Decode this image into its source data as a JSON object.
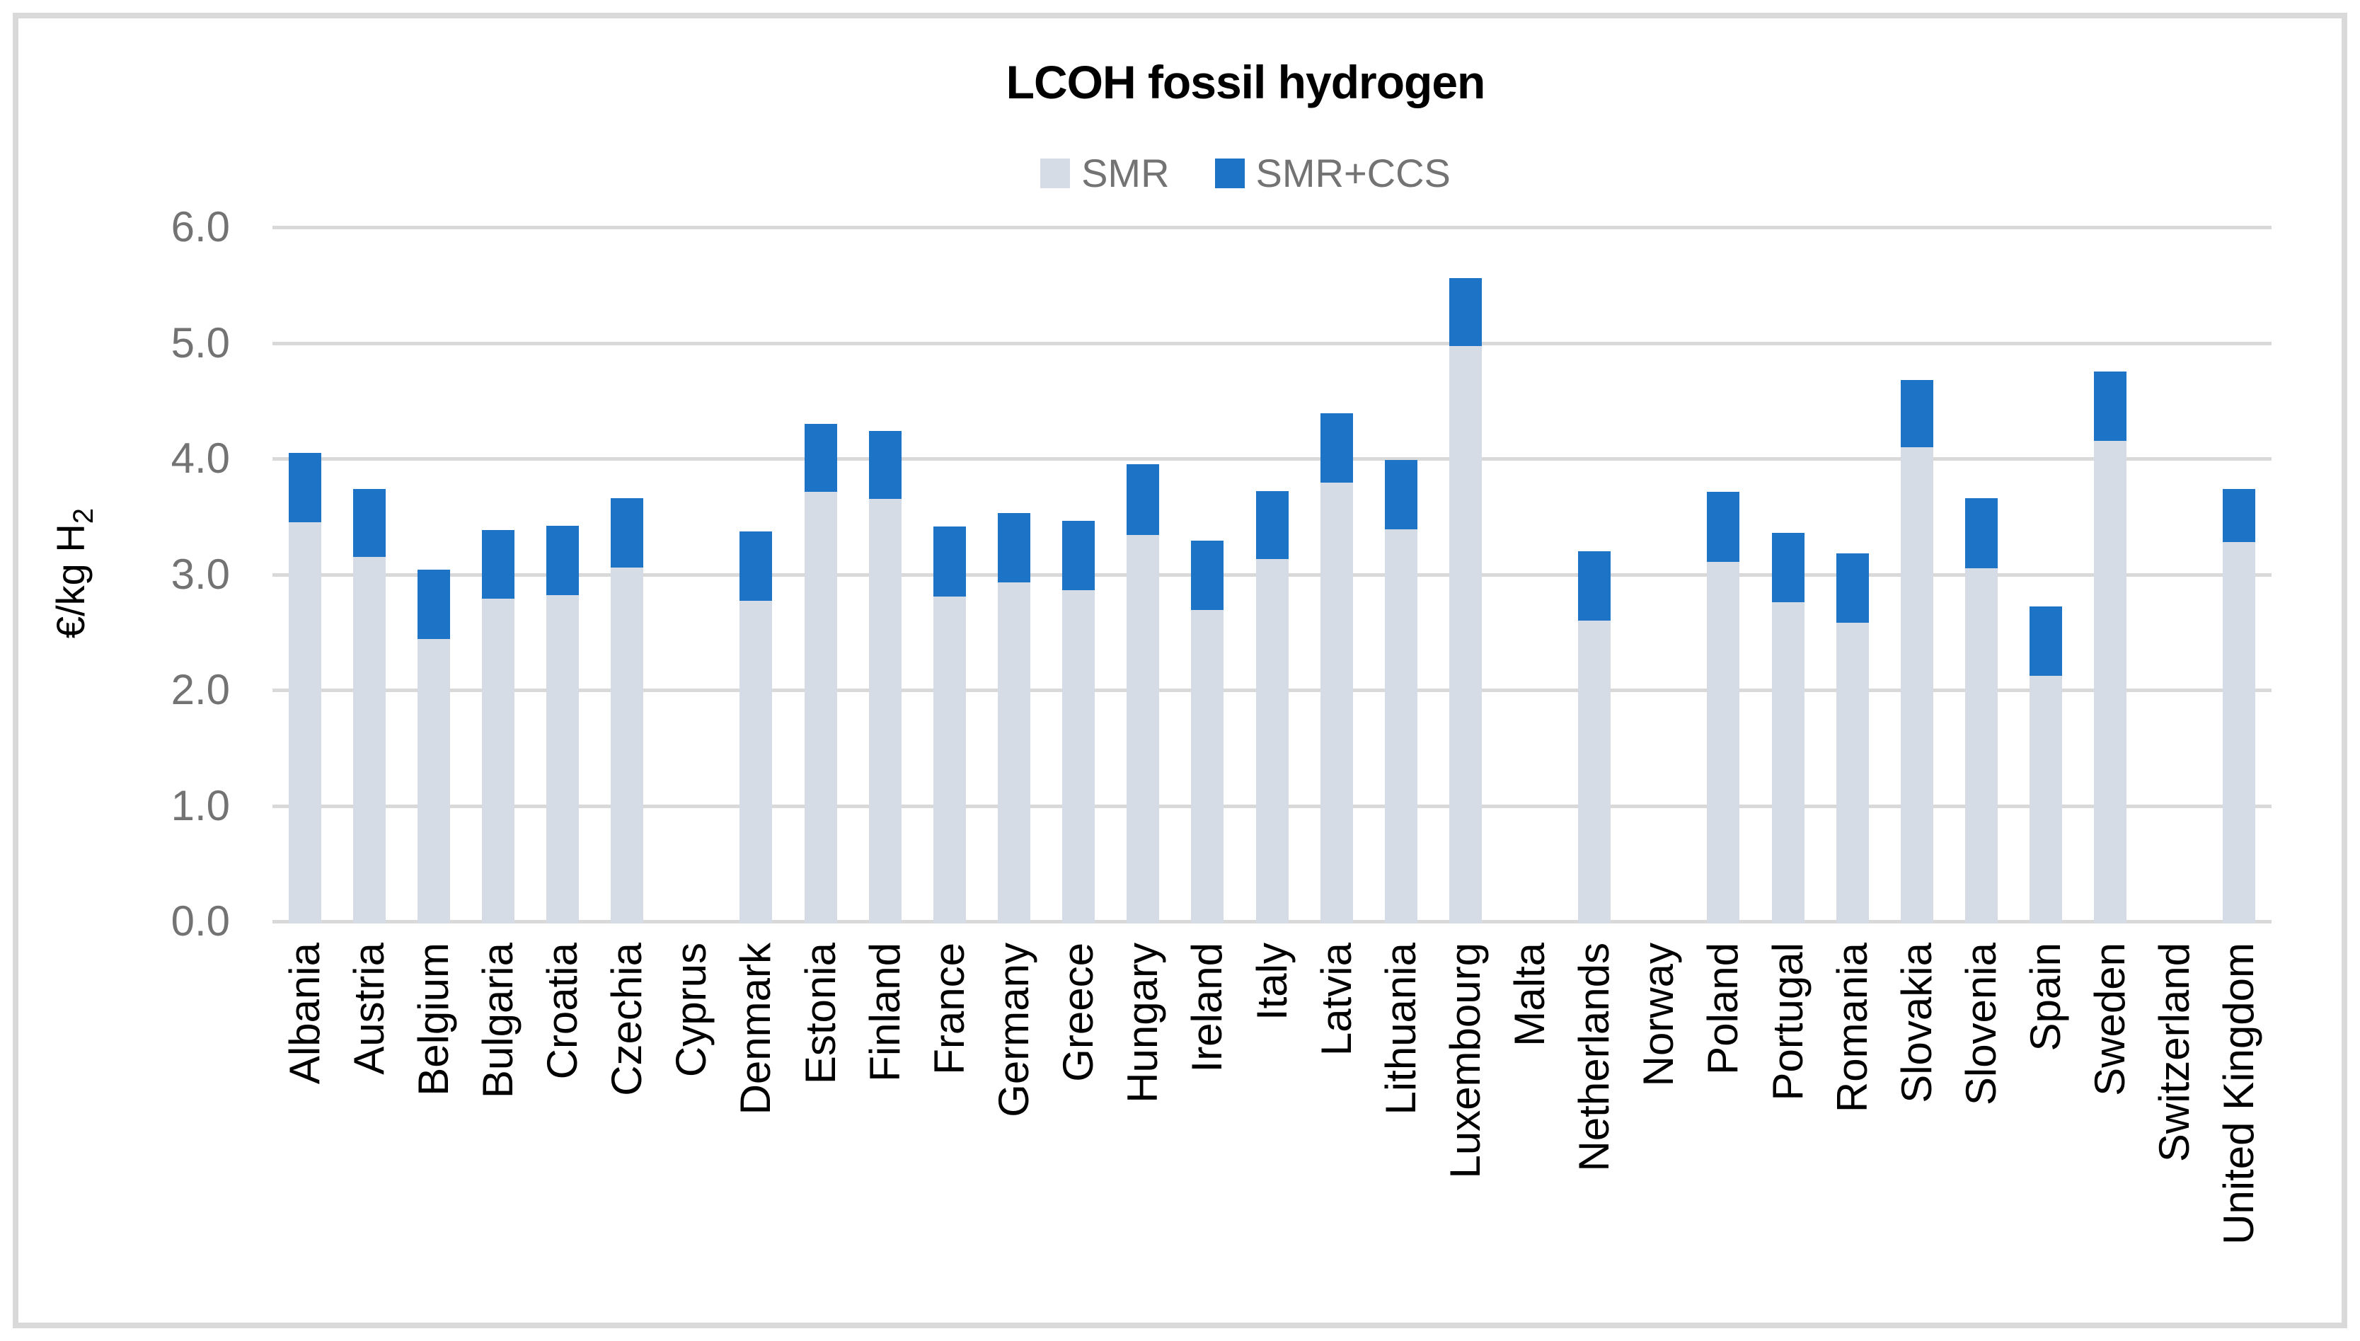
{
  "title": "LCOH fossil hydrogen",
  "legend": [
    {
      "label": "SMR",
      "color": "#d6dce5"
    },
    {
      "label": "SMR+CCS",
      "color": "#1d73c6"
    }
  ],
  "y_axis": {
    "title_main": "€/kg H",
    "title_sub": "2",
    "ticks": [
      {
        "label": "6.0",
        "value": 6
      },
      {
        "label": "5.0",
        "value": 5
      },
      {
        "label": "4.0",
        "value": 4
      },
      {
        "label": "3.0",
        "value": 3
      },
      {
        "label": "2.0",
        "value": 2
      },
      {
        "label": "1.0",
        "value": 1
      },
      {
        "label": "0.0",
        "value": 0
      }
    ]
  },
  "colors": {
    "smr": "#d6dce5",
    "smr_ccs": "#1d73c6",
    "gridline": "#d9d9d9",
    "axis_text": "#737373",
    "label_text": "#000000"
  },
  "chart_data": {
    "type": "bar",
    "stacked": true,
    "title": "LCOH fossil hydrogen",
    "xlabel": "",
    "ylabel": "€/kg H2",
    "ylim": [
      0,
      6
    ],
    "grid": true,
    "legend_position": "top",
    "categories": [
      "Albania",
      "Austria",
      "Belgium",
      "Bulgaria",
      "Croatia",
      "Czechia",
      "Cyprus",
      "Denmark",
      "Estonia",
      "Finland",
      "France",
      "Germany",
      "Greece",
      "Hungary",
      "Ireland",
      "Italy",
      "Latvia",
      "Lithuania",
      "Luxembourg",
      "Malta",
      "Netherlands",
      "Norway",
      "Poland",
      "Portugal",
      "Romania",
      "Slovakia",
      "Slovenia",
      "Spain",
      "Sweden",
      "Switzerland",
      "United Kingdom"
    ],
    "series": [
      {
        "name": "SMR",
        "note": "cost level at top of light segment (base of blue segment)",
        "values": [
          3.45,
          3.15,
          2.44,
          2.79,
          2.82,
          3.06,
          null,
          2.77,
          3.71,
          3.65,
          2.81,
          2.93,
          2.86,
          3.34,
          2.69,
          3.13,
          3.79,
          3.39,
          4.97,
          null,
          2.6,
          null,
          3.11,
          2.76,
          2.58,
          4.1,
          3.05,
          2.12,
          4.15,
          null,
          3.28
        ]
      },
      {
        "name": "SMR+CCS",
        "note": "cost level at top of blue segment",
        "values": [
          4.05,
          3.74,
          3.04,
          3.38,
          3.42,
          3.66,
          null,
          3.37,
          4.3,
          4.24,
          3.41,
          3.53,
          3.46,
          3.95,
          3.29,
          3.72,
          4.39,
          3.99,
          5.56,
          null,
          3.2,
          null,
          3.71,
          3.36,
          3.18,
          4.68,
          3.66,
          2.72,
          4.75,
          null,
          3.74
        ]
      }
    ]
  }
}
